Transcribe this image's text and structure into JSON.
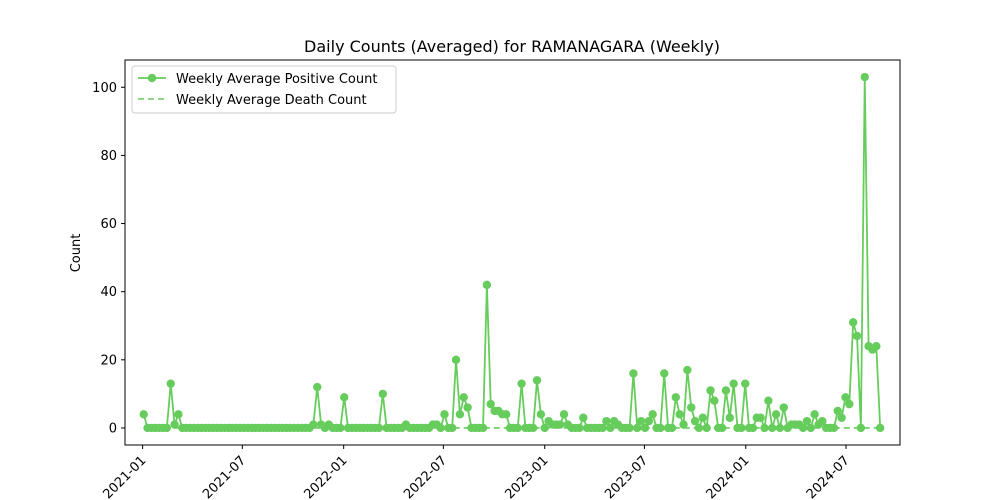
{
  "chart_data": {
    "type": "line",
    "title": "Daily Counts (Averaged) for RAMANAGARA (Weekly)",
    "xlabel": "",
    "ylabel": "Count",
    "x_type": "date",
    "xlim": [
      "2020-11-30",
      "2024-10-07"
    ],
    "ylim": [
      -5,
      108
    ],
    "x_ticks": [
      "2021-01",
      "2021-07",
      "2022-01",
      "2022-07",
      "2023-01",
      "2023-07",
      "2024-01",
      "2024-07"
    ],
    "x_tick_dates": [
      "2021-01-01",
      "2021-07-01",
      "2022-01-01",
      "2022-07-01",
      "2023-01-01",
      "2023-07-01",
      "2024-01-01",
      "2024-07-01"
    ],
    "y_ticks": [
      0,
      20,
      40,
      60,
      80,
      100
    ],
    "grid": false,
    "legend_position": "upper-left",
    "color": "#66cc5c",
    "series": [
      {
        "name": "Weekly Average Positive Count",
        "style": "solid-marker",
        "points": [
          [
            "2021-01-03",
            4
          ],
          [
            "2021-01-10",
            0
          ],
          [
            "2021-01-17",
            0
          ],
          [
            "2021-01-24",
            0
          ],
          [
            "2021-01-31",
            0
          ],
          [
            "2021-02-07",
            0
          ],
          [
            "2021-02-14",
            0
          ],
          [
            "2021-02-21",
            13
          ],
          [
            "2021-02-28",
            1
          ],
          [
            "2021-03-07",
            4
          ],
          [
            "2021-03-14",
            0
          ],
          [
            "2021-03-21",
            0
          ],
          [
            "2021-03-28",
            0
          ],
          [
            "2021-04-04",
            0
          ],
          [
            "2021-04-11",
            0
          ],
          [
            "2021-04-18",
            0
          ],
          [
            "2021-04-25",
            0
          ],
          [
            "2021-05-02",
            0
          ],
          [
            "2021-05-09",
            0
          ],
          [
            "2021-05-16",
            0
          ],
          [
            "2021-05-23",
            0
          ],
          [
            "2021-05-30",
            0
          ],
          [
            "2021-06-06",
            0
          ],
          [
            "2021-06-13",
            0
          ],
          [
            "2021-06-20",
            0
          ],
          [
            "2021-06-27",
            0
          ],
          [
            "2021-07-04",
            0
          ],
          [
            "2021-07-11",
            0
          ],
          [
            "2021-07-18",
            0
          ],
          [
            "2021-07-25",
            0
          ],
          [
            "2021-08-01",
            0
          ],
          [
            "2021-08-08",
            0
          ],
          [
            "2021-08-15",
            0
          ],
          [
            "2021-08-22",
            0
          ],
          [
            "2021-08-29",
            0
          ],
          [
            "2021-09-05",
            0
          ],
          [
            "2021-09-12",
            0
          ],
          [
            "2021-09-19",
            0
          ],
          [
            "2021-09-26",
            0
          ],
          [
            "2021-10-03",
            0
          ],
          [
            "2021-10-10",
            0
          ],
          [
            "2021-10-17",
            0
          ],
          [
            "2021-10-24",
            0
          ],
          [
            "2021-10-31",
            0
          ],
          [
            "2021-11-07",
            1
          ],
          [
            "2021-11-14",
            12
          ],
          [
            "2021-11-21",
            1
          ],
          [
            "2021-11-28",
            0
          ],
          [
            "2021-12-05",
            1
          ],
          [
            "2021-12-12",
            0
          ],
          [
            "2021-12-19",
            0
          ],
          [
            "2021-12-26",
            0
          ],
          [
            "2022-01-02",
            9
          ],
          [
            "2022-01-09",
            0
          ],
          [
            "2022-01-16",
            0
          ],
          [
            "2022-01-23",
            0
          ],
          [
            "2022-01-30",
            0
          ],
          [
            "2022-02-06",
            0
          ],
          [
            "2022-02-13",
            0
          ],
          [
            "2022-02-20",
            0
          ],
          [
            "2022-02-27",
            0
          ],
          [
            "2022-03-06",
            0
          ],
          [
            "2022-03-13",
            10
          ],
          [
            "2022-03-20",
            0
          ],
          [
            "2022-03-27",
            0
          ],
          [
            "2022-04-03",
            0
          ],
          [
            "2022-04-10",
            0
          ],
          [
            "2022-04-17",
            0
          ],
          [
            "2022-04-24",
            1
          ],
          [
            "2022-05-01",
            0
          ],
          [
            "2022-05-08",
            0
          ],
          [
            "2022-05-15",
            0
          ],
          [
            "2022-05-22",
            0
          ],
          [
            "2022-05-29",
            0
          ],
          [
            "2022-06-05",
            0
          ],
          [
            "2022-06-12",
            1
          ],
          [
            "2022-06-19",
            1
          ],
          [
            "2022-06-26",
            0
          ],
          [
            "2022-07-03",
            4
          ],
          [
            "2022-07-10",
            0
          ],
          [
            "2022-07-17",
            0
          ],
          [
            "2022-07-24",
            20
          ],
          [
            "2022-07-31",
            4
          ],
          [
            "2022-08-07",
            9
          ],
          [
            "2022-08-14",
            6
          ],
          [
            "2022-08-21",
            0
          ],
          [
            "2022-08-28",
            0
          ],
          [
            "2022-09-04",
            0
          ],
          [
            "2022-09-11",
            0
          ],
          [
            "2022-09-18",
            42
          ],
          [
            "2022-09-25",
            7
          ],
          [
            "2022-10-02",
            5
          ],
          [
            "2022-10-09",
            5
          ],
          [
            "2022-10-16",
            4
          ],
          [
            "2022-10-23",
            4
          ],
          [
            "2022-10-30",
            0
          ],
          [
            "2022-11-06",
            0
          ],
          [
            "2022-11-13",
            0
          ],
          [
            "2022-11-20",
            13
          ],
          [
            "2022-11-27",
            0
          ],
          [
            "2022-12-04",
            0
          ],
          [
            "2022-12-11",
            0
          ],
          [
            "2022-12-18",
            14
          ],
          [
            "2022-12-25",
            4
          ],
          [
            "2023-01-01",
            0
          ],
          [
            "2023-01-08",
            2
          ],
          [
            "2023-01-15",
            1
          ],
          [
            "2023-01-22",
            1
          ],
          [
            "2023-01-29",
            1
          ],
          [
            "2023-02-05",
            4
          ],
          [
            "2023-02-12",
            1
          ],
          [
            "2023-02-19",
            0
          ],
          [
            "2023-02-26",
            0
          ],
          [
            "2023-03-05",
            0
          ],
          [
            "2023-03-12",
            3
          ],
          [
            "2023-03-19",
            0
          ],
          [
            "2023-03-26",
            0
          ],
          [
            "2023-04-02",
            0
          ],
          [
            "2023-04-09",
            0
          ],
          [
            "2023-04-16",
            0
          ],
          [
            "2023-04-23",
            2
          ],
          [
            "2023-04-30",
            0
          ],
          [
            "2023-05-07",
            2
          ],
          [
            "2023-05-14",
            1
          ],
          [
            "2023-05-21",
            0
          ],
          [
            "2023-05-28",
            0
          ],
          [
            "2023-06-04",
            0
          ],
          [
            "2023-06-11",
            16
          ],
          [
            "2023-06-18",
            0
          ],
          [
            "2023-06-25",
            2
          ],
          [
            "2023-07-02",
            0
          ],
          [
            "2023-07-09",
            2
          ],
          [
            "2023-07-16",
            4
          ],
          [
            "2023-07-23",
            0
          ],
          [
            "2023-07-30",
            0
          ],
          [
            "2023-08-06",
            16
          ],
          [
            "2023-08-13",
            0
          ],
          [
            "2023-08-20",
            0
          ],
          [
            "2023-08-27",
            9
          ],
          [
            "2023-09-03",
            4
          ],
          [
            "2023-09-10",
            1
          ],
          [
            "2023-09-17",
            17
          ],
          [
            "2023-09-24",
            6
          ],
          [
            "2023-10-01",
            2
          ],
          [
            "2023-10-08",
            0
          ],
          [
            "2023-10-15",
            3
          ],
          [
            "2023-10-22",
            0
          ],
          [
            "2023-10-29",
            11
          ],
          [
            "2023-11-05",
            8
          ],
          [
            "2023-11-12",
            0
          ],
          [
            "2023-11-19",
            0
          ],
          [
            "2023-11-26",
            11
          ],
          [
            "2023-12-03",
            3
          ],
          [
            "2023-12-10",
            13
          ],
          [
            "2023-12-17",
            0
          ],
          [
            "2023-12-24",
            0
          ],
          [
            "2023-12-31",
            13
          ],
          [
            "2024-01-07",
            0
          ],
          [
            "2024-01-14",
            0
          ],
          [
            "2024-01-21",
            3
          ],
          [
            "2024-01-28",
            3
          ],
          [
            "2024-02-04",
            0
          ],
          [
            "2024-02-11",
            8
          ],
          [
            "2024-02-18",
            0
          ],
          [
            "2024-02-25",
            4
          ],
          [
            "2024-03-03",
            0
          ],
          [
            "2024-03-10",
            6
          ],
          [
            "2024-03-17",
            0
          ],
          [
            "2024-03-24",
            1
          ],
          [
            "2024-03-31",
            1
          ],
          [
            "2024-04-07",
            1
          ],
          [
            "2024-04-14",
            0
          ],
          [
            "2024-04-21",
            2
          ],
          [
            "2024-04-28",
            0
          ],
          [
            "2024-05-05",
            4
          ],
          [
            "2024-05-12",
            1
          ],
          [
            "2024-05-19",
            2
          ],
          [
            "2024-05-26",
            0
          ],
          [
            "2024-06-02",
            0
          ],
          [
            "2024-06-09",
            0
          ],
          [
            "2024-06-16",
            5
          ],
          [
            "2024-06-23",
            3
          ],
          [
            "2024-06-30",
            9
          ],
          [
            "2024-07-07",
            7
          ],
          [
            "2024-07-14",
            31
          ],
          [
            "2024-07-21",
            27
          ],
          [
            "2024-07-28",
            0
          ],
          [
            "2024-08-04",
            103
          ],
          [
            "2024-08-11",
            24
          ],
          [
            "2024-08-18",
            23
          ],
          [
            "2024-08-25",
            24
          ],
          [
            "2024-09-01",
            0
          ]
        ]
      },
      {
        "name": "Weekly Average Death Count",
        "style": "dashed",
        "points": [
          [
            "2021-01-03",
            0
          ],
          [
            "2024-09-01",
            0
          ]
        ]
      }
    ]
  }
}
